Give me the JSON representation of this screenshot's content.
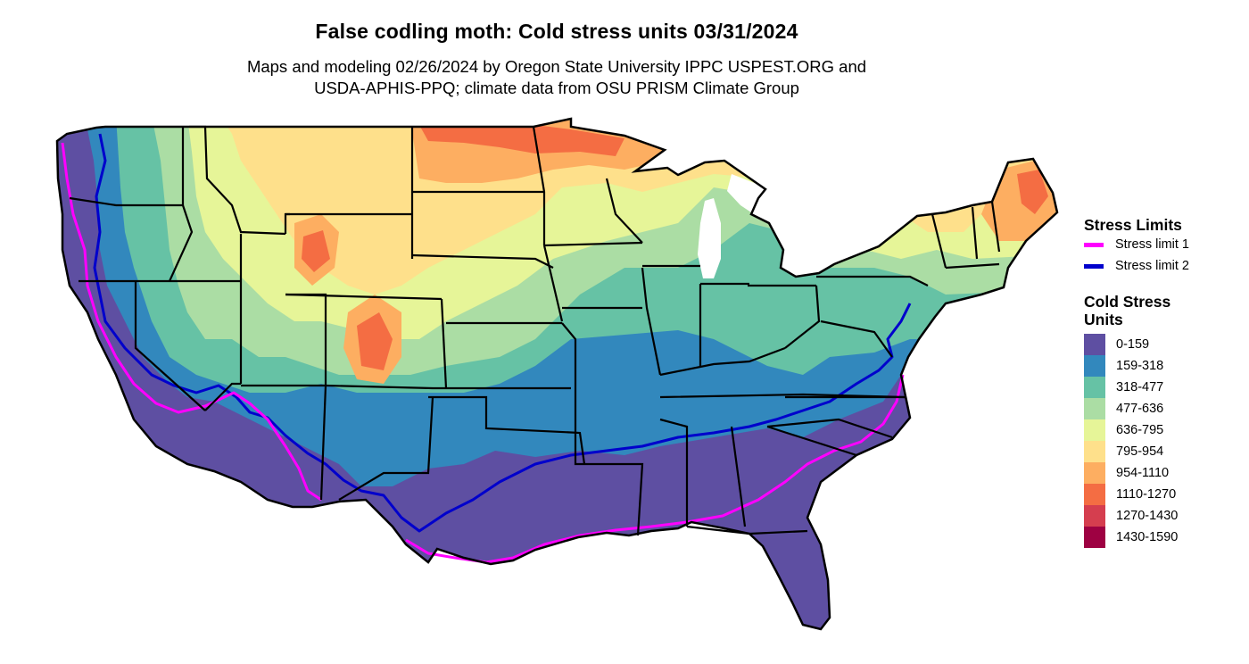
{
  "header": {
    "title": "False codling moth: Cold stress units 03/31/2024",
    "subtitle_line1": "Maps and modeling 02/26/2024 by Oregon State University IPPC USPEST.ORG and",
    "subtitle_line2": "USDA-APHIS-PPQ; climate data from OSU PRISM Climate Group"
  },
  "legend": {
    "stress_limits": {
      "title": "Stress Limits",
      "items": [
        {
          "label": "Stress limit 1",
          "color": "#ff00ff"
        },
        {
          "label": "Stress limit 2",
          "color": "#0000cc"
        }
      ]
    },
    "cold_stress": {
      "title": "Cold Stress Units",
      "items": [
        {
          "label": "0-159",
          "color": "#5e4fa2"
        },
        {
          "label": "159-318",
          "color": "#3288bd"
        },
        {
          "label": "318-477",
          "color": "#66c2a5"
        },
        {
          "label": "477-636",
          "color": "#abdda4"
        },
        {
          "label": "636-795",
          "color": "#e6f598"
        },
        {
          "label": "795-954",
          "color": "#fee08b"
        },
        {
          "label": "954-1110",
          "color": "#fdae61"
        },
        {
          "label": "1110-1270",
          "color": "#f46d43"
        },
        {
          "label": "1270-1430",
          "color": "#d53e4f"
        },
        {
          "label": "1430-1590",
          "color": "#9e0142"
        }
      ]
    }
  }
}
